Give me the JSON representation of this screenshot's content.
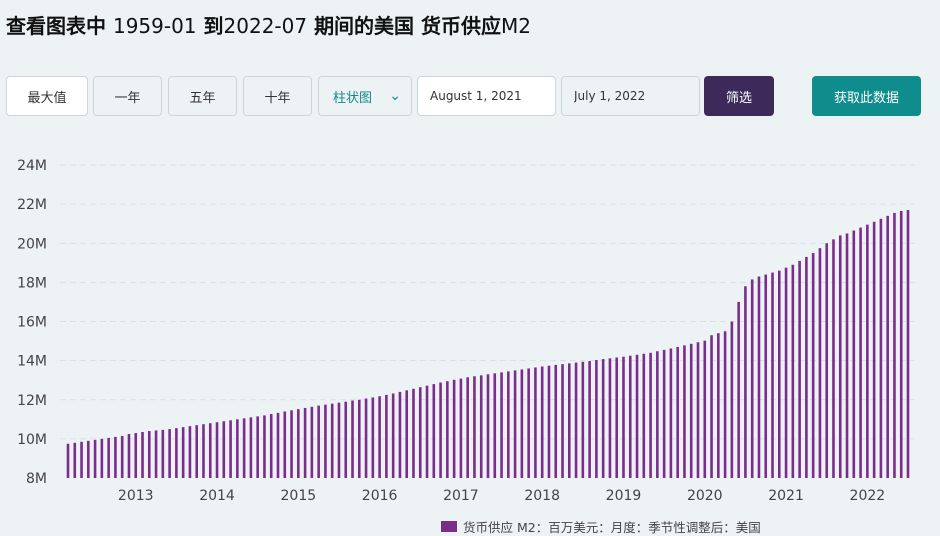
{
  "header": {
    "title_prefix": "查看图表中",
    "title_from": "1959-01",
    "title_mid": "到",
    "title_to": "2022-07",
    "title_suffix": "期间的美国 货币供应",
    "title_series": "M2"
  },
  "toolbar": {
    "ranges": [
      "最大值",
      "一年",
      "五年",
      "十年"
    ],
    "active_range": "最大值",
    "chart_type": "柱状图",
    "date_from": "August 1, 2021",
    "date_to": "July 1, 2022",
    "filter_label": "筛选",
    "get_data_label": "获取此数据"
  },
  "colors": {
    "bar": "#7b2d8b",
    "filter_button": "#3d2a5a",
    "get_data_button": "#0f8c8c",
    "background": "#edf2f5"
  },
  "chart_data": {
    "type": "bar",
    "ytick_labels": [
      "8M",
      "10M",
      "12M",
      "14M",
      "16M",
      "18M",
      "20M",
      "22M",
      "24M"
    ],
    "ylim": [
      8,
      24
    ],
    "xtick_labels": [
      "2013",
      "2014",
      "2015",
      "2016",
      "2017",
      "2018",
      "2019",
      "2020",
      "2021",
      "2022"
    ],
    "x_start": "2012-03",
    "x_end": "2022-07",
    "values": [
      9.75,
      9.8,
      9.85,
      9.9,
      9.95,
      10.0,
      10.05,
      10.1,
      10.15,
      10.25,
      10.3,
      10.35,
      10.4,
      10.43,
      10.46,
      10.5,
      10.55,
      10.6,
      10.65,
      10.7,
      10.75,
      10.8,
      10.85,
      10.9,
      10.95,
      11.0,
      11.05,
      11.1,
      11.15,
      11.2,
      11.27,
      11.33,
      11.4,
      11.46,
      11.52,
      11.58,
      11.64,
      11.7,
      11.75,
      11.8,
      11.85,
      11.9,
      11.96,
      12.0,
      12.06,
      12.12,
      12.18,
      12.25,
      12.32,
      12.4,
      12.48,
      12.56,
      12.64,
      12.72,
      12.8,
      12.88,
      12.95,
      13.02,
      13.08,
      13.15,
      13.2,
      13.25,
      13.3,
      13.35,
      13.4,
      13.45,
      13.5,
      13.55,
      13.6,
      13.65,
      13.7,
      13.74,
      13.78,
      13.82,
      13.86,
      13.9,
      13.94,
      13.98,
      14.03,
      14.08,
      14.12,
      14.16,
      14.2,
      14.25,
      14.3,
      14.35,
      14.4,
      14.48,
      14.55,
      14.62,
      14.7,
      14.78,
      14.86,
      14.94,
      15.02,
      15.3,
      15.4,
      15.5,
      16.0,
      17.0,
      17.8,
      18.15,
      18.3,
      18.4,
      18.5,
      18.6,
      18.75,
      18.9,
      19.1,
      19.3,
      19.5,
      19.75,
      20.0,
      20.2,
      20.4,
      20.5,
      20.65,
      20.8,
      20.95,
      21.1,
      21.25,
      21.4,
      21.55,
      21.65,
      21.7
    ],
    "series_name": "货币供应 M2：百万美元：月度：季节性调整后：美国"
  }
}
